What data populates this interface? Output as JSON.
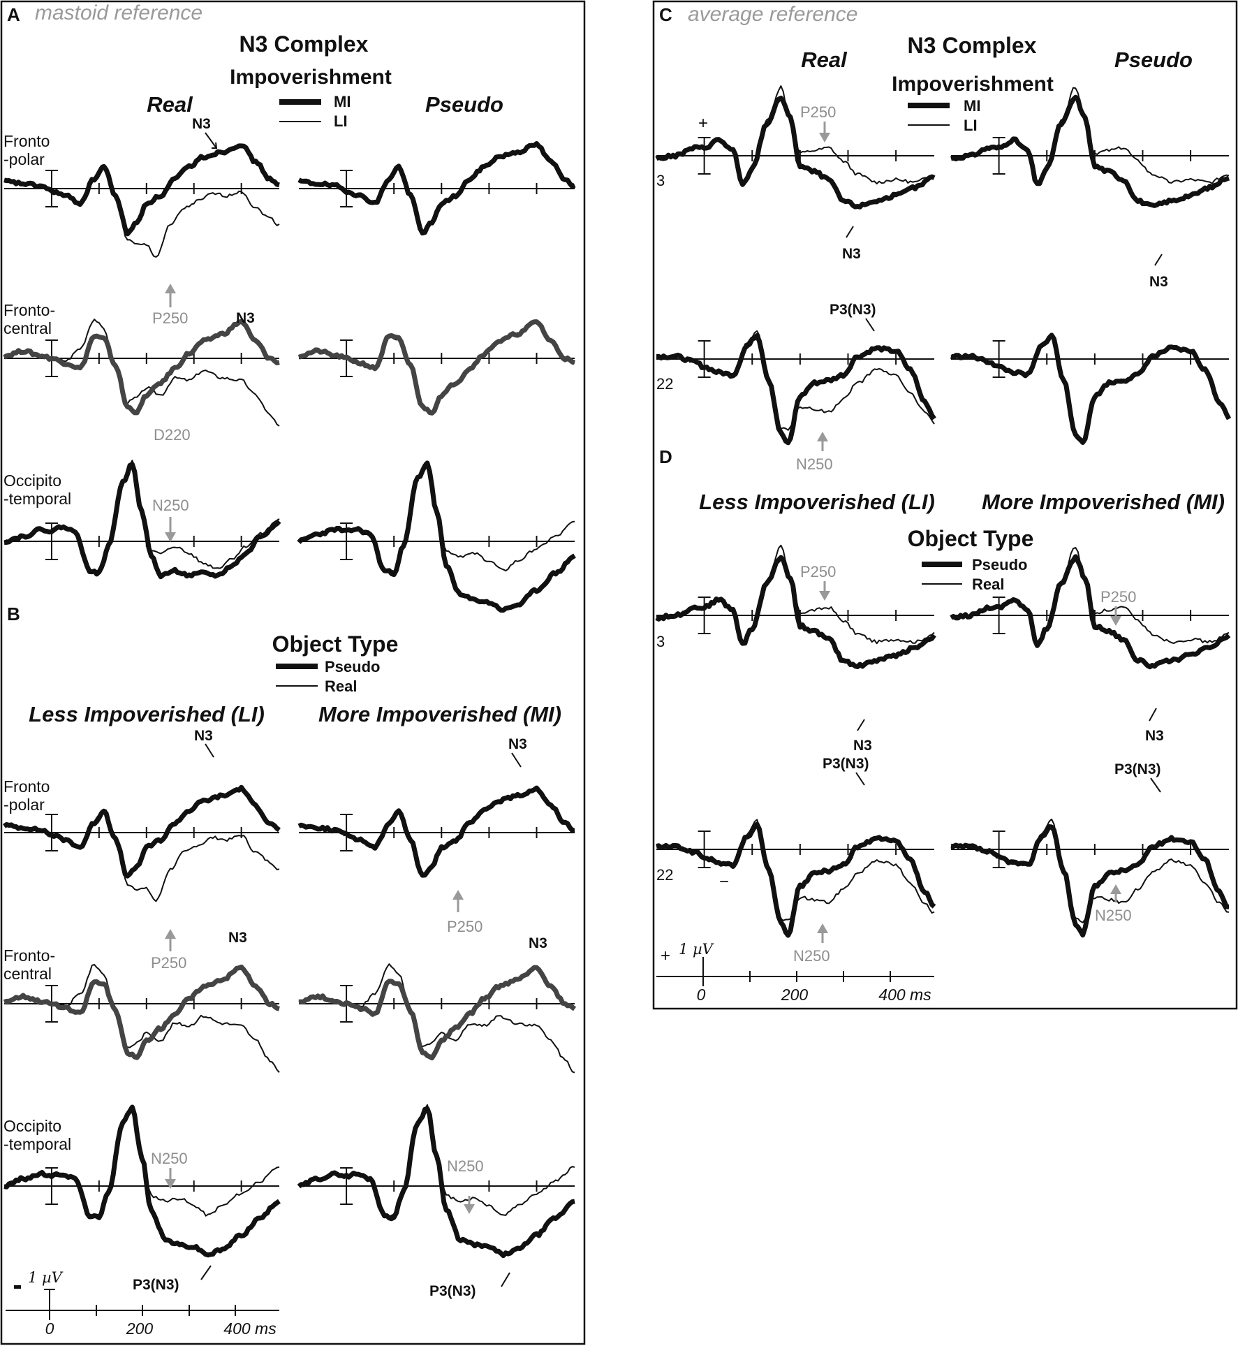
{
  "panels": {
    "A": {
      "letter": "A",
      "reference": "mastoid reference",
      "title": "N3 Complex",
      "subtitle": "Impoverishment",
      "legend": [
        "MI",
        "LI"
      ],
      "columns": [
        "Real",
        "Pseudo"
      ]
    },
    "B": {
      "letter": "B",
      "title": "Object Type",
      "legend": [
        "Pseudo",
        "Real"
      ],
      "columns": [
        "Less Impoverished (LI)",
        "More Impoverished (MI)"
      ]
    },
    "C": {
      "letter": "C",
      "reference": "average reference",
      "title": "N3 Complex",
      "subtitle": "Impoverishment",
      "legend": [
        "MI",
        "LI"
      ],
      "columns": [
        "Real",
        "Pseudo"
      ]
    },
    "D": {
      "letter": "D",
      "title": "Object Type",
      "legend": [
        "Pseudo",
        "Real"
      ],
      "columns": [
        "Less Impoverished (LI)",
        "More Impoverished (MI)"
      ]
    }
  },
  "row_labels": {
    "fronto_polar": [
      "Fronto",
      "-polar"
    ],
    "fronto_central": [
      "Fronto-",
      "central"
    ],
    "occipito_temporal": [
      "Occipito",
      "-temporal"
    ]
  },
  "channels": [
    "3",
    "22"
  ],
  "annotations": {
    "n3": "N3",
    "p250": "P250",
    "d220": "D220",
    "n250": "N250",
    "p3n3": "P3(N3)"
  },
  "axis": {
    "ticks": [
      "0",
      "200",
      "400 ms"
    ],
    "scale": "1 µV",
    "plus": "+",
    "minus": "−"
  },
  "chart_data": {
    "type": "line",
    "x_unit": "ms",
    "x_ticks": [
      0,
      100,
      200,
      300,
      400
    ],
    "xlim": [
      -100,
      480
    ],
    "scale_bar": "1 µV",
    "conditions": {
      "A": [
        "MI",
        "LI"
      ],
      "B": [
        "Pseudo",
        "Real"
      ],
      "C": [
        "MI",
        "LI"
      ],
      "D": [
        "Pseudo",
        "Real"
      ]
    },
    "components": [
      "N3",
      "P250",
      "D220",
      "N250",
      "P3(N3)"
    ]
  }
}
